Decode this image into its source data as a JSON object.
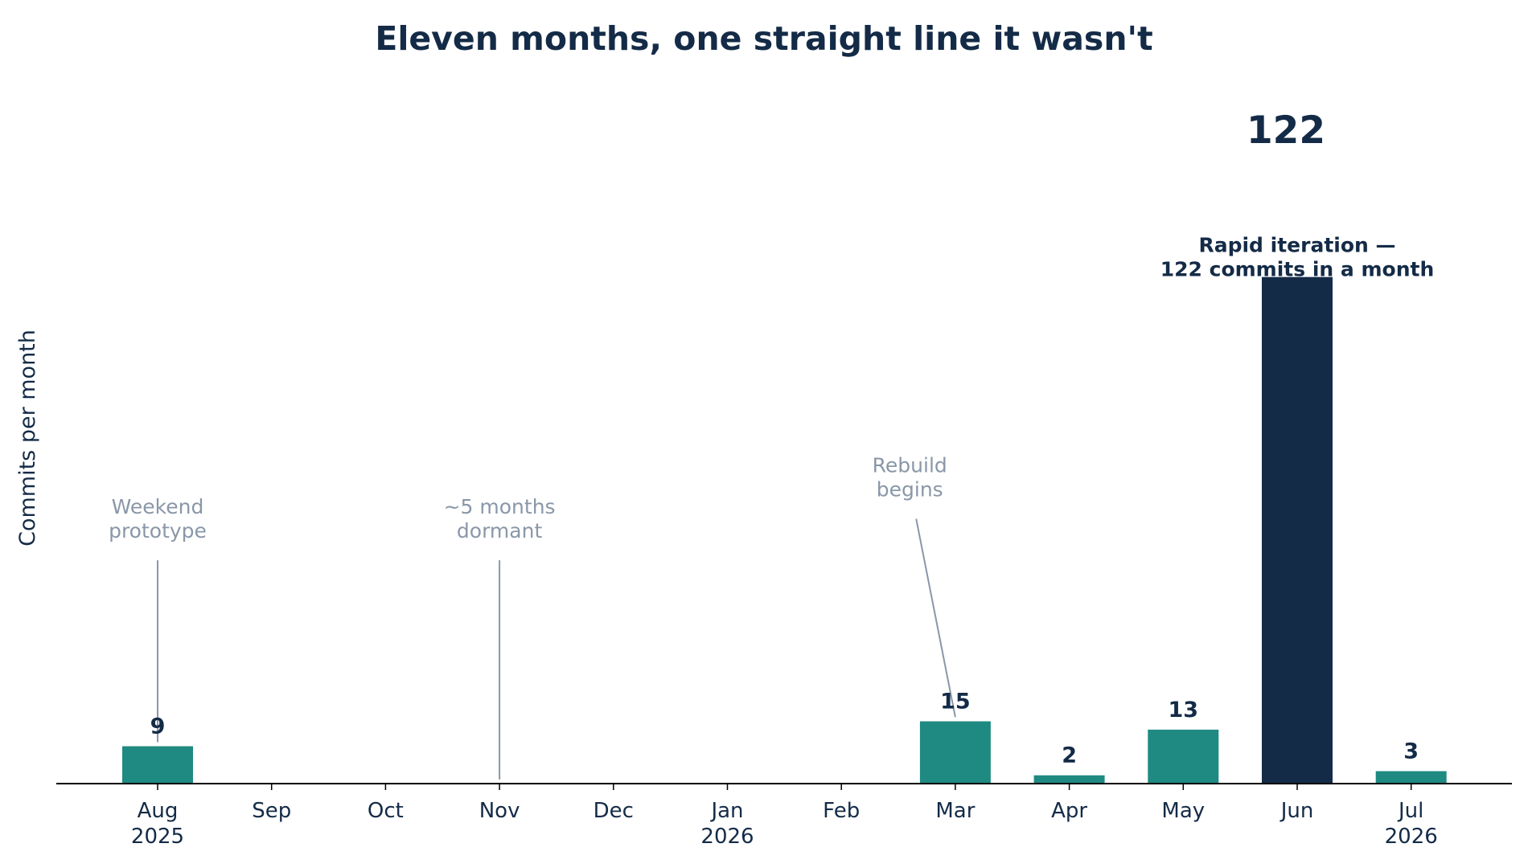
{
  "chart_data": {
    "type": "bar",
    "title": "Eleven months, one straight line it wasn't",
    "xlabel": "",
    "ylabel": "Commits per month",
    "categories": [
      {
        "month": "Aug",
        "year": "2025"
      },
      {
        "month": "Sep",
        "year": ""
      },
      {
        "month": "Oct",
        "year": ""
      },
      {
        "month": "Nov",
        "year": ""
      },
      {
        "month": "Dec",
        "year": ""
      },
      {
        "month": "Jan",
        "year": "2026"
      },
      {
        "month": "Feb",
        "year": ""
      },
      {
        "month": "Mar",
        "year": ""
      },
      {
        "month": "Apr",
        "year": ""
      },
      {
        "month": "May",
        "year": ""
      },
      {
        "month": "Jun",
        "year": ""
      },
      {
        "month": "Jul",
        "year": "2026"
      }
    ],
    "values": [
      9,
      0,
      0,
      0,
      0,
      0,
      0,
      15,
      2,
      13,
      122,
      3
    ],
    "data_labels": [
      "9",
      "",
      "",
      "",
      "",
      "",
      "",
      "15",
      "2",
      "13",
      "",
      "3"
    ],
    "highlight": {
      "category_index": 10,
      "value_label": "122"
    },
    "ylim": [
      0,
      150
    ],
    "grid": false,
    "legend": "none",
    "colors": {
      "bar": "#1f8a82",
      "highlight_bar": "#142b47",
      "text": "#142b47",
      "annotation": "#8a97a8"
    },
    "annotations": [
      {
        "lines": [
          "Weekend",
          "prototype"
        ],
        "category_index": 0,
        "text_y": 65,
        "points_to_y": 10,
        "style": "muted"
      },
      {
        "lines": [
          "~5 months",
          "dormant"
        ],
        "category_index": 3,
        "text_y": 65,
        "points_to_y": 1,
        "style": "muted"
      },
      {
        "lines": [
          "Rebuild",
          "begins"
        ],
        "category_index": 6.6,
        "text_y": 75,
        "points_to_y": 16,
        "target_index": 7,
        "style": "muted"
      },
      {
        "lines": [
          "Rapid iteration —",
          "122 commits in a month"
        ],
        "category_index": 10,
        "text_y": 128,
        "style": "highlight"
      }
    ]
  }
}
